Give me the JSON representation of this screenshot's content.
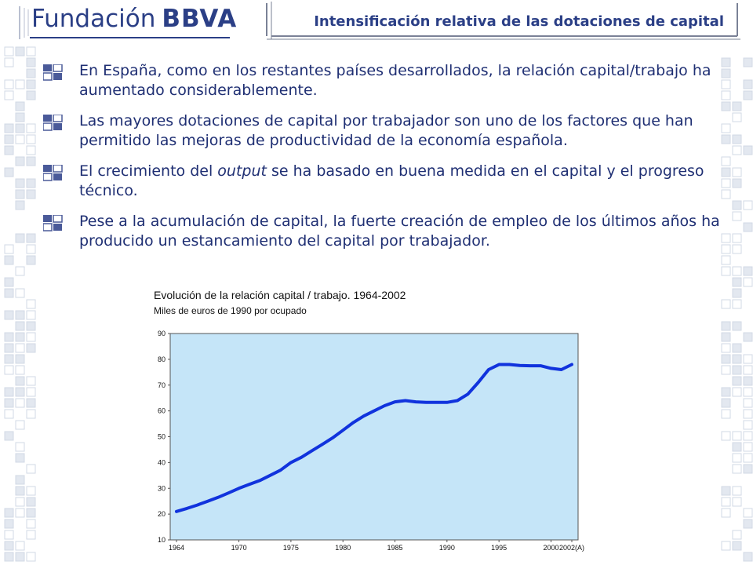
{
  "header": {
    "logo_word1": "Fundación",
    "logo_word2": "BBVA",
    "title": "Intensificación relativa de las dotaciones de capital"
  },
  "bullets": [
    {
      "text": "En España, como en los restantes países desarrollados, la relación capital/trabajo ha aumentado considerablemente."
    },
    {
      "text": "Las mayores dotaciones de capital por trabajador son uno de los factores que han permitido las mejoras de productividad de la economía española."
    },
    {
      "text_before": "El crecimiento del ",
      "text_em": "output",
      "text_after": " se ha basado en buena medida en el capital y el progreso técnico."
    },
    {
      "text": "Pese a la acumulación de capital, la fuerte creación de empleo de los últimos años ha producido un estancamiento del capital por trabajador."
    }
  ],
  "colors": {
    "brand": "#2b3f86",
    "text": "#1f2f73",
    "plot_bg": "#c5e5f8",
    "line": "#1133dd",
    "pattern": "#e3e8f0"
  },
  "chart_data": {
    "type": "line",
    "title": "Evolución de la relación capital / trabajo. 1964-2002",
    "subtitle": "Miles de euros de 1990 por ocupado",
    "ylim": [
      10,
      90
    ],
    "y_ticks": [
      "10",
      "20",
      "30",
      "40",
      "50",
      "60",
      "70",
      "80",
      "90"
    ],
    "x_ticks": [
      {
        "year": 1964,
        "label": "1964"
      },
      {
        "year": 1970,
        "label": "1970"
      },
      {
        "year": 1975,
        "label": "1975"
      },
      {
        "year": 1980,
        "label": "1980"
      },
      {
        "year": 1985,
        "label": "1985"
      },
      {
        "year": 1990,
        "label": "1990"
      },
      {
        "year": 1995,
        "label": "1995"
      },
      {
        "year": 2000,
        "label": "2000"
      },
      {
        "year": 2002,
        "label": "2002(A)"
      }
    ],
    "xlim": [
      1964,
      2002
    ],
    "grid": false,
    "series": [
      {
        "x": [
          1964,
          1965,
          1966,
          1967,
          1968,
          1969,
          1970,
          1971,
          1972,
          1973,
          1974,
          1975,
          1976,
          1977,
          1978,
          1979,
          1980,
          1981,
          1982,
          1983,
          1984,
          1985,
          1986,
          1987,
          1988,
          1989,
          1990,
          1991,
          1992,
          1993,
          1994,
          1995,
          1996,
          1997,
          1998,
          1999,
          2000,
          2001,
          2002
        ],
        "y": [
          21,
          22.2,
          23.5,
          25,
          26.5,
          28.2,
          30,
          31.5,
          33,
          35,
          37,
          40,
          42,
          44.5,
          47,
          49.5,
          52.5,
          55.5,
          58,
          60,
          62,
          63.5,
          64,
          63.5,
          63.3,
          63.3,
          63.3,
          64,
          66.5,
          71,
          76,
          78,
          78,
          77.6,
          77.5,
          77.5,
          76.5,
          76,
          78
        ]
      }
    ]
  }
}
